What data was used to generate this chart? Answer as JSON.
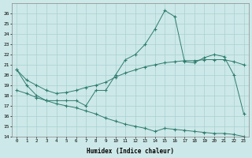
{
  "line1_x": [
    0,
    1,
    2,
    3,
    4,
    5,
    6,
    7,
    8,
    9,
    10,
    11,
    12,
    13,
    14,
    15,
    16,
    17,
    18,
    19,
    20,
    21,
    22,
    23
  ],
  "line1_y": [
    20.5,
    19.0,
    18.0,
    17.5,
    17.5,
    17.5,
    17.5,
    17.0,
    18.5,
    18.5,
    20.0,
    21.5,
    22.0,
    23.0,
    24.5,
    26.3,
    25.7,
    21.3,
    21.2,
    21.7,
    22.0,
    21.8,
    20.0,
    16.2
  ],
  "line2_x": [
    0,
    1,
    2,
    3,
    4,
    5,
    6,
    7,
    8,
    9,
    10,
    11,
    12,
    13,
    14,
    15,
    16,
    17,
    18,
    19,
    20,
    21,
    22,
    23
  ],
  "line2_y": [
    20.5,
    19.5,
    19.0,
    18.5,
    18.2,
    18.3,
    18.5,
    18.8,
    19.0,
    19.3,
    19.8,
    20.2,
    20.5,
    20.8,
    21.0,
    21.2,
    21.3,
    21.4,
    21.4,
    21.5,
    21.5,
    21.5,
    21.3,
    21.0
  ],
  "line3_x": [
    0,
    1,
    2,
    3,
    4,
    5,
    6,
    7,
    8,
    9,
    10,
    11,
    12,
    13,
    14,
    15,
    16,
    17,
    18,
    19,
    20,
    21,
    22,
    23
  ],
  "line3_y": [
    18.5,
    18.2,
    17.8,
    17.5,
    17.2,
    17.0,
    16.8,
    16.5,
    16.2,
    15.8,
    15.5,
    15.2,
    15.0,
    14.8,
    14.5,
    14.8,
    14.7,
    14.6,
    14.5,
    14.4,
    14.3,
    14.3,
    14.2,
    14.0
  ],
  "color": "#2e7d6e",
  "bg_color": "#cde8e8",
  "grid_color": "#a8d0d0",
  "xlabel": "Humidex (Indice chaleur)",
  "ylim": [
    14,
    27
  ],
  "xlim": [
    -0.5,
    23.5
  ],
  "yticks": [
    14,
    15,
    16,
    17,
    18,
    19,
    20,
    21,
    22,
    23,
    24,
    25,
    26
  ],
  "xticks": [
    0,
    1,
    2,
    3,
    4,
    5,
    6,
    7,
    8,
    9,
    10,
    11,
    12,
    13,
    14,
    15,
    16,
    17,
    18,
    19,
    20,
    21,
    22,
    23
  ]
}
